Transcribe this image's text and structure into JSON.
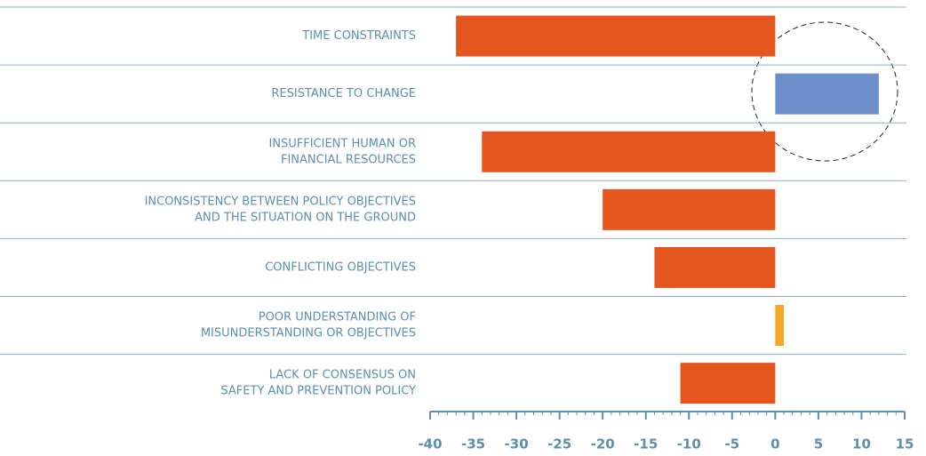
{
  "chart_data": {
    "type": "hbar",
    "categories": [
      [
        "TIME CONSTRAINTS"
      ],
      [
        "RESISTANCE TO CHANGE"
      ],
      [
        "INSUFFICIENT HUMAN OR",
        "FINANCIAL RESOURCES"
      ],
      [
        "INCONSISTENCY BETWEEN POLICY OBJECTIVES",
        "AND THE SITUATION ON THE GROUND"
      ],
      [
        "CONFLICTING OBJECTIVES"
      ],
      [
        "POOR UNDERSTANDING OF",
        "MISUNDERSTANDING OR OBJECTIVES"
      ],
      [
        "LACK OF CONSENSUS ON",
        "SAFETY AND PREVENTION POLICY"
      ]
    ],
    "values": [
      -37,
      12,
      -34,
      -20,
      -14,
      1,
      -11
    ],
    "colors": [
      "#e5561f",
      "#6d8fc9",
      "#e5561f",
      "#e5561f",
      "#e5561f",
      "#f5a623",
      "#e5561f"
    ],
    "xlim": [
      -40,
      15
    ],
    "xticks": [
      -40,
      -35,
      -30,
      -25,
      -20,
      -15,
      -10,
      -5,
      0,
      5,
      10,
      15
    ]
  }
}
